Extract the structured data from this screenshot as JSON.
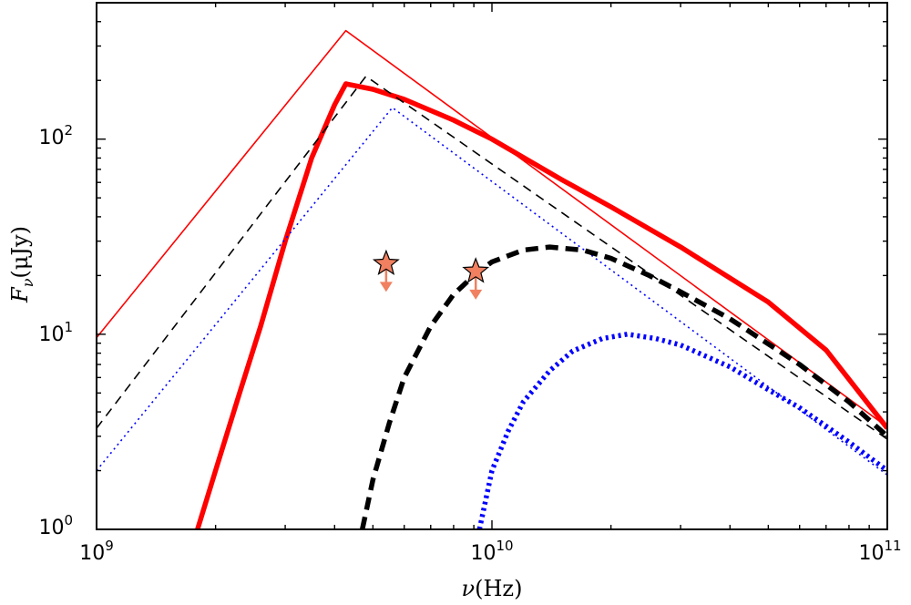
{
  "chart_data": {
    "type": "line",
    "title": "",
    "xscale": "log",
    "yscale": "log",
    "xlim": [
      1000000000.0,
      100000000000.0
    ],
    "ylim": [
      1,
      500
    ],
    "xlabel": {
      "symbol": "ν",
      "unit": "(Hz)"
    },
    "ylabel": {
      "symbol": "F",
      "subscript": "ν",
      "unit": "(μJy)"
    },
    "xticks": [
      {
        "value": 1000000000.0,
        "base": "10",
        "exp": "9"
      },
      {
        "value": 10000000000.0,
        "base": "10",
        "exp": "10"
      },
      {
        "value": 100000000000.0,
        "base": "10",
        "exp": "11"
      }
    ],
    "yticks": [
      {
        "value": 1,
        "base": "10",
        "exp": "0"
      },
      {
        "value": 10,
        "base": "10",
        "exp": "1"
      },
      {
        "value": 100,
        "base": "10",
        "exp": "2"
      }
    ],
    "series": [
      {
        "name": "thin-red-solid",
        "color": "#ff0000",
        "style": "solid",
        "weight": "thin",
        "x": [
          1000000000.0,
          4270000000.0,
          100000000000.0
        ],
        "y": [
          9.6,
          360,
          3.35
        ]
      },
      {
        "name": "thick-red-solid",
        "color": "#ff0000",
        "style": "solid",
        "weight": "thick",
        "x": [
          1800000000.0,
          2000000000.0,
          2300000000.0,
          2600000000.0,
          3000000000.0,
          3500000000.0,
          4000000000.0,
          4270000000.0,
          5000000000.0,
          6000000000.0,
          8000000000.0,
          10000000000.0,
          15000000000.0,
          20000000000.0,
          30000000000.0,
          50000000000.0,
          70000000000.0,
          100000000000.0
        ],
        "y": [
          1.0,
          2.0,
          5.0,
          11,
          30,
          80,
          150,
          192,
          180,
          160,
          125,
          100,
          62,
          45,
          28,
          14.6,
          8.3,
          3.3
        ]
      },
      {
        "name": "thin-black-dashed",
        "color": "#000000",
        "style": "dashed",
        "weight": "thin",
        "x": [
          1000000000.0,
          4800000000.0,
          100000000000.0
        ],
        "y": [
          3.3,
          210,
          2.9
        ]
      },
      {
        "name": "thin-blue-dotted",
        "color": "#0000ff",
        "style": "dotted",
        "weight": "thin",
        "x": [
          1000000000.0,
          5600000000.0,
          100000000000.0
        ],
        "y": [
          2.0,
          145,
          1.9
        ]
      },
      {
        "name": "thick-black-dashed",
        "color": "#000000",
        "style": "dashed",
        "weight": "thick",
        "x": [
          4700000000.0,
          5000000000.0,
          5500000000.0,
          6000000000.0,
          7000000000.0,
          8000000000.0,
          9000000000.0,
          10000000000.0,
          12000000000.0,
          14000000000.0,
          17000000000.0,
          20000000000.0,
          25000000000.0,
          30000000000.0,
          40000000000.0,
          60000000000.0,
          80000000000.0,
          100000000000.0
        ],
        "y": [
          1.0,
          1.8,
          3.5,
          6,
          11,
          16,
          20,
          23.5,
          27,
          28,
          27,
          24.5,
          20,
          16.5,
          12,
          7,
          4.5,
          3.0
        ]
      },
      {
        "name": "thick-blue-dotted",
        "color": "#0000ff",
        "style": "dotted",
        "weight": "thick",
        "x": [
          9300000000.0,
          10000000000.0,
          11000000000.0,
          12000000000.0,
          14000000000.0,
          16000000000.0,
          19000000000.0,
          22000000000.0,
          26000000000.0,
          30000000000.0,
          40000000000.0,
          50000000000.0,
          60000000000.0,
          80000000000.0,
          100000000000.0
        ],
        "y": [
          1.0,
          2.0,
          3.2,
          4.5,
          6.5,
          8.2,
          9.5,
          10,
          9.5,
          8.8,
          6.8,
          5.2,
          4.2,
          2.8,
          2.0
        ]
      }
    ],
    "upper_limits": [
      {
        "x": 5400000000.0,
        "y": 23,
        "marker": "star",
        "color": "#f08060"
      },
      {
        "x": 9100000000.0,
        "y": 21,
        "marker": "star",
        "color": "#f08060"
      }
    ]
  }
}
